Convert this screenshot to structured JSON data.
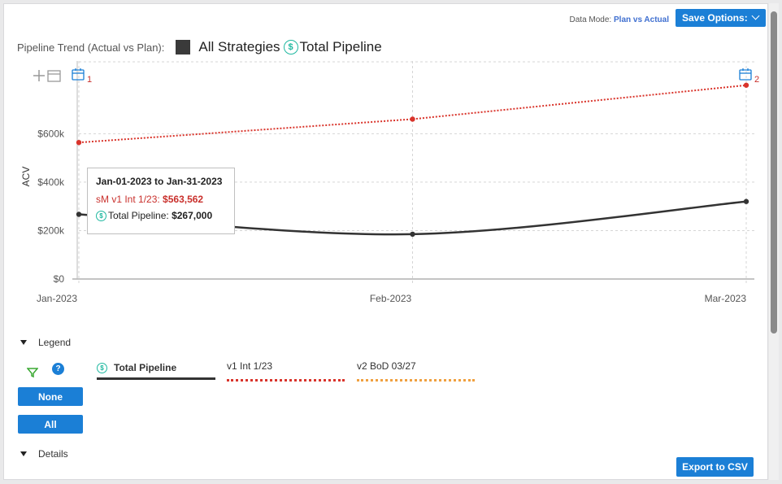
{
  "header": {
    "data_mode_label": "Data Mode:",
    "data_mode_value": "Plan vs Actual",
    "save_options_label": "Save Options:"
  },
  "title": {
    "label": "Pipeline Trend (Actual vs Plan):",
    "strategy": "All Strategies",
    "metric": "Total Pipeline",
    "dollar_icon": "$"
  },
  "chart_data": {
    "type": "line",
    "x": [
      "Jan-2023",
      "Feb-2023",
      "Mar-2023"
    ],
    "ylabel": "ACV",
    "xlabel": "",
    "ylim": [
      0,
      900000
    ],
    "yticks": [
      0,
      200000,
      400000,
      600000
    ],
    "ytick_labels": [
      "$0",
      "$200k",
      "$400k",
      "$600k"
    ],
    "grid": true,
    "series": [
      {
        "name": "Total Pipeline",
        "values": [
          267000,
          185000,
          320000
        ],
        "color": "#333333",
        "style": "solid"
      },
      {
        "name": "v1 Int 1/23",
        "values": [
          563562,
          660000,
          800000
        ],
        "color": "#d9342b",
        "style": "dotted"
      }
    ],
    "markers": [
      {
        "label": "1",
        "x": "Jan-2023"
      },
      {
        "label": "2",
        "x": "Mar-2023"
      }
    ]
  },
  "tooltip": {
    "title": "Jan-01-2023 to Jan-31-2023",
    "row1_label": "sM v1 Int 1/23:",
    "row1_value": "$563,562",
    "row2_label": "Total Pipeline:",
    "row2_value": "$267,000"
  },
  "legend": {
    "header": "Legend",
    "none_label": "None",
    "all_label": "All",
    "help_label": "?",
    "items": [
      {
        "label": "Total Pipeline",
        "color": "#333333"
      },
      {
        "label": "v1 Int 1/23",
        "color": "#d9342b"
      },
      {
        "label": "v2 BoD 03/27",
        "color": "#f0a040"
      }
    ]
  },
  "details": {
    "header": "Details"
  },
  "export_label": "Export to CSV"
}
